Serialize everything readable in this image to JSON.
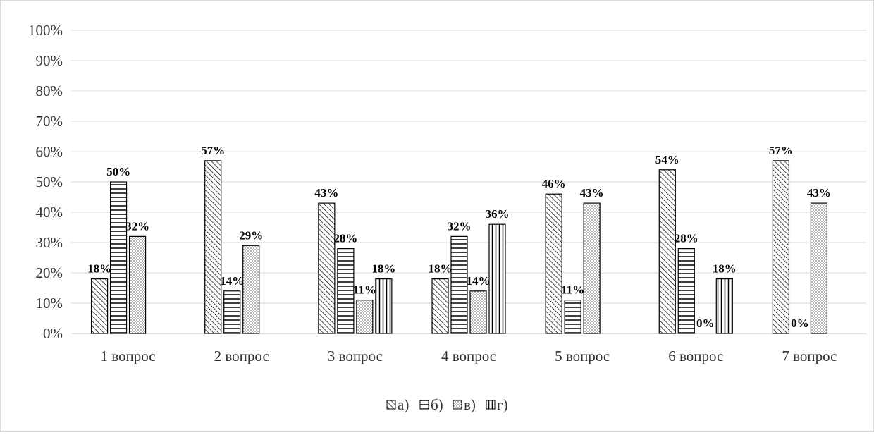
{
  "chart_data": {
    "type": "bar",
    "title": "",
    "xlabel": "",
    "ylabel": "",
    "ylim": [
      0,
      100
    ],
    "yticks": [
      "0%",
      "10%",
      "20%",
      "30%",
      "40%",
      "50%",
      "60%",
      "70%",
      "80%",
      "90%",
      "100%"
    ],
    "grid": true,
    "legend_position": "bottom",
    "categories": [
      "1 вопрос",
      "2 вопрос",
      "3 вопрос",
      "4 вопрос",
      "5 вопрос",
      "6 вопрос",
      "7 вопрос"
    ],
    "series": [
      {
        "name": "а)",
        "pattern": "diagonal",
        "values": [
          18,
          57,
          43,
          18,
          46,
          54,
          57
        ],
        "labels": [
          "18%",
          "57%",
          "43%",
          "18%",
          "46%",
          "54%",
          "57%"
        ]
      },
      {
        "name": "б)",
        "pattern": "horizontal",
        "values": [
          50,
          14,
          28,
          32,
          11,
          28,
          0
        ],
        "labels": [
          "50%",
          "14%",
          "28%",
          "32%",
          "11%",
          "28%",
          "0%"
        ]
      },
      {
        "name": "в)",
        "pattern": "dots",
        "values": [
          32,
          29,
          11,
          14,
          43,
          0,
          43
        ],
        "labels": [
          "32%",
          "29%",
          "11%",
          "14%",
          "43%",
          "0%",
          "43%"
        ]
      },
      {
        "name": "г)",
        "pattern": "vertical",
        "values": [
          null,
          null,
          18,
          36,
          null,
          18,
          null
        ],
        "labels": [
          null,
          null,
          "18%",
          "36%",
          null,
          "18%",
          null
        ]
      }
    ]
  }
}
